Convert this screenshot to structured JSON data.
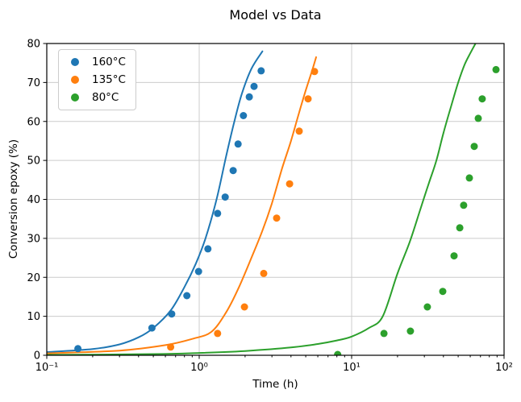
{
  "title": "Model vs Data",
  "axes": {
    "xlabel": "Time (h)",
    "ylabel": "Conversion epoxy (%)",
    "xscale": "log",
    "xlim": [
      0.1,
      100
    ],
    "ylim": [
      0,
      80
    ],
    "x_major_ticks": {
      "values": [
        0.1,
        1,
        10,
        100
      ],
      "labels": [
        "10⁻¹",
        "10⁰",
        "10¹",
        "10²"
      ]
    },
    "y_ticks": [
      0,
      10,
      20,
      30,
      40,
      50,
      60,
      70,
      80
    ],
    "grid": true,
    "grid_color": "#cccccc",
    "spine_color": "#000000",
    "background": "#ffffff"
  },
  "legend": {
    "position": "upper-left",
    "entries": [
      {
        "label": "160°C",
        "color": "#1f77b4"
      },
      {
        "label": "135°C",
        "color": "#ff7f0e"
      },
      {
        "label": "80°C",
        "color": "#2ca02c"
      }
    ]
  },
  "chart_data": {
    "type": "scatter",
    "note": "Each series has experimental scatter points and a smooth model curve",
    "xlabel": "Time (h)",
    "ylabel": "Conversion epoxy (%)",
    "xlim": [
      0.1,
      100
    ],
    "ylim": [
      0,
      80
    ],
    "series": [
      {
        "name": "160°C",
        "color": "#1f77b4",
        "scatter": [
          [
            0.16,
            1.7
          ],
          [
            0.49,
            7.0
          ],
          [
            0.66,
            10.6
          ],
          [
            0.83,
            15.3
          ],
          [
            0.99,
            21.5
          ],
          [
            1.14,
            27.3
          ],
          [
            1.32,
            36.4
          ],
          [
            1.48,
            40.6
          ],
          [
            1.67,
            47.4
          ],
          [
            1.8,
            54.2
          ],
          [
            1.95,
            61.5
          ],
          [
            2.13,
            66.3
          ],
          [
            2.29,
            69.0
          ],
          [
            2.55,
            73.0
          ]
        ],
        "model_curve": [
          [
            0.1,
            0.8
          ],
          [
            0.2,
            1.6
          ],
          [
            0.3,
            2.8
          ],
          [
            0.4,
            4.6
          ],
          [
            0.5,
            7.0
          ],
          [
            0.65,
            11.5
          ],
          [
            0.8,
            17.5
          ],
          [
            0.95,
            23.5
          ],
          [
            1.1,
            30
          ],
          [
            1.3,
            40
          ],
          [
            1.5,
            51
          ],
          [
            1.7,
            60
          ],
          [
            1.9,
            67
          ],
          [
            2.2,
            73.5
          ],
          [
            2.6,
            78
          ]
        ]
      },
      {
        "name": "135°C",
        "color": "#ff7f0e",
        "scatter": [
          [
            0.65,
            2.1
          ],
          [
            1.32,
            5.6
          ],
          [
            1.98,
            12.4
          ],
          [
            2.65,
            21.0
          ],
          [
            3.22,
            35.2
          ],
          [
            3.92,
            44.0
          ],
          [
            4.53,
            57.5
          ],
          [
            5.18,
            65.8
          ],
          [
            5.71,
            72.8
          ]
        ],
        "model_curve": [
          [
            0.1,
            0.5
          ],
          [
            0.3,
            1.2
          ],
          [
            0.6,
            2.6
          ],
          [
            0.9,
            4.2
          ],
          [
            1.2,
            6.0
          ],
          [
            1.5,
            11
          ],
          [
            1.8,
            17
          ],
          [
            2.2,
            25
          ],
          [
            2.6,
            32
          ],
          [
            3.0,
            39
          ],
          [
            3.5,
            48
          ],
          [
            4.0,
            55
          ],
          [
            4.5,
            62
          ],
          [
            5.0,
            68
          ],
          [
            5.5,
            73
          ],
          [
            5.85,
            76.5
          ]
        ]
      },
      {
        "name": "80°C",
        "color": "#2ca02c",
        "scatter": [
          [
            8.1,
            0.2
          ],
          [
            16.3,
            5.6
          ],
          [
            24.3,
            6.2
          ],
          [
            31.4,
            12.4
          ],
          [
            39.6,
            16.4
          ],
          [
            47.0,
            25.5
          ],
          [
            51.2,
            32.7
          ],
          [
            54.3,
            38.5
          ],
          [
            59.2,
            45.5
          ],
          [
            63.7,
            53.6
          ],
          [
            67.7,
            60.8
          ],
          [
            71.9,
            65.8
          ],
          [
            88.5,
            73.3
          ]
        ],
        "model_curve": [
          [
            0.1,
            0.1
          ],
          [
            0.5,
            0.3
          ],
          [
            1,
            0.6
          ],
          [
            2,
            1.1
          ],
          [
            4,
            2.0
          ],
          [
            6,
            2.9
          ],
          [
            8,
            3.8
          ],
          [
            10,
            4.8
          ],
          [
            13,
            7.0
          ],
          [
            16,
            10
          ],
          [
            20,
            21
          ],
          [
            24,
            29
          ],
          [
            28,
            37
          ],
          [
            32,
            44
          ],
          [
            36,
            50
          ],
          [
            40,
            57
          ],
          [
            45,
            64
          ],
          [
            50,
            70
          ],
          [
            55,
            74.5
          ],
          [
            60,
            77.5
          ],
          [
            66,
            80.5
          ]
        ]
      }
    ]
  }
}
